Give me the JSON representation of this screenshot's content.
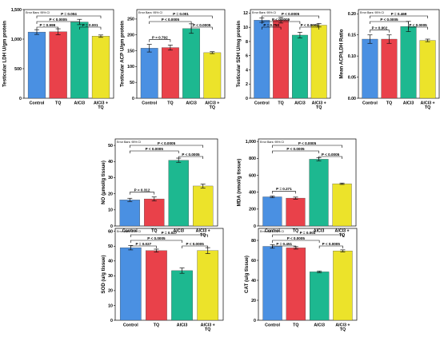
{
  "figure": {
    "colors": {
      "Control": "#4a90e2",
      "TQ": "#e9414a",
      "AlCl3": "#1db890",
      "AlCl3 + TQ": "#ece32a",
      "frame": "#000000",
      "bracket": "#000000"
    }
  },
  "chart_data": [
    {
      "type": "bar",
      "panel": "ldh",
      "ylabel": "Testicular LDH U/gm protein",
      "note": "Error Bars: 95% CI",
      "categories": [
        "Control",
        "TQ",
        "AlCl3",
        "AlCl3 + TQ"
      ],
      "category_labels": [
        "Control",
        "TQ",
        "AlCl3",
        "AlCl3 +\nTQ"
      ],
      "values": [
        1120,
        1125,
        1290,
        1050
      ],
      "errors": [
        40,
        50,
        45,
        20
      ],
      "ylim": [
        0,
        1500
      ],
      "yticks": [
        0,
        500,
        1000,
        1500
      ],
      "ytick_labels": [
        "0",
        "500",
        "1,000",
        "1,500"
      ],
      "brackets": [
        {
          "from": 0,
          "to": 3,
          "label": "P = 0.004"
        },
        {
          "from": 0,
          "to": 2,
          "label": "P < 0.0005"
        },
        {
          "from": 0,
          "to": 1,
          "label": "P = 0.999"
        },
        {
          "from": 2,
          "to": 3,
          "label": "P = 0.001"
        }
      ]
    },
    {
      "type": "bar",
      "panel": "acp",
      "ylabel": "Testicular ACP U/gm protein",
      "note": "Error Bars: 95% CI",
      "categories": [
        "Control",
        "TQ",
        "AlCl3",
        "AlCl3 + TQ"
      ],
      "category_labels": [
        "Control",
        "TQ",
        "AlCl3",
        "AlCl3 +\nTQ"
      ],
      "values": [
        158,
        160,
        220,
        144
      ],
      "errors": [
        12,
        8,
        15,
        3
      ],
      "ylim": [
        0,
        280
      ],
      "yticks": [
        0,
        50,
        100,
        150,
        200,
        250
      ],
      "ytick_labels": [
        "0",
        "50",
        "100",
        "150",
        "200",
        "250"
      ],
      "brackets": [
        {
          "from": 0,
          "to": 3,
          "label": "P = 0.001"
        },
        {
          "from": 0,
          "to": 2,
          "label": "P < 0.0005"
        },
        {
          "from": 0,
          "to": 1,
          "label": "P = 0.792"
        },
        {
          "from": 2,
          "to": 3,
          "label": "P < 0.0005"
        }
      ]
    },
    {
      "type": "bar",
      "panel": "sdh",
      "ylabel": "Testicular SDH U/mg protein",
      "note": "Error Bars: 95% CI",
      "categories": [
        "Control",
        "TQ",
        "AlCl3",
        "AlCl3 + TQ"
      ],
      "category_labels": [
        "Control",
        "TQ",
        "AlCl3",
        "AlCl3 +\nTQ"
      ],
      "values": [
        11.0,
        11.0,
        8.9,
        10.3
      ],
      "errors": [
        0.3,
        0.4,
        0.4,
        0.25
      ],
      "ylim": [
        0,
        12.5
      ],
      "yticks": [
        0,
        2,
        4,
        6,
        8,
        10,
        12
      ],
      "ytick_labels": [
        "0",
        "2",
        "4",
        "6",
        "8",
        "10",
        "12"
      ],
      "brackets": [
        {
          "from": 0,
          "to": 3,
          "label": "P < 0.0005"
        },
        {
          "from": 0,
          "to": 2,
          "label": "P < 0.0005"
        },
        {
          "from": 0,
          "to": 1,
          "label": "P = 0.750"
        },
        {
          "from": 2,
          "to": 3,
          "label": "P < 0.0005"
        }
      ]
    },
    {
      "type": "bar",
      "panel": "ratio",
      "ylabel": "Mean ACP/LDH Ratio",
      "note": "Error Bars: 95% CI",
      "categories": [
        "Control",
        "TQ",
        "AlCl3",
        "AlCl3 + TQ"
      ],
      "category_labels": [
        "Control",
        "TQ",
        "AlCl3",
        "AlCl3 +\nTQ"
      ],
      "values": [
        0.14,
        0.14,
        0.17,
        0.137
      ],
      "errors": [
        0.01,
        0.01,
        0.012,
        0.003
      ],
      "ylim": [
        0,
        0.21
      ],
      "yticks": [
        0,
        0.05,
        0.1,
        0.15,
        0.2
      ],
      "ytick_labels": [
        "0.00",
        "0.05",
        "0.10",
        "0.15",
        "0.20"
      ],
      "brackets": [
        {
          "from": 0,
          "to": 3,
          "label": "P = 0.469"
        },
        {
          "from": 0,
          "to": 2,
          "label": "P < 0.0005"
        },
        {
          "from": 0,
          "to": 1,
          "label": "P = 0.902"
        },
        {
          "from": 2,
          "to": 3,
          "label": "P < 0.0005"
        }
      ]
    },
    {
      "type": "bar",
      "panel": "no",
      "ylabel": "NO (µmol/g tissue)",
      "note": "Error Bars: 95% CI",
      "categories": [
        "Control",
        "TQ",
        "AlCl3",
        "AlCl3 + TQ"
      ],
      "category_labels": [
        "Control",
        "TQ",
        "AlCl3",
        "AlCl3 +\nTQ"
      ],
      "values": [
        16.2,
        16.8,
        40.8,
        24.8
      ],
      "errors": [
        1.0,
        1.2,
        1.3,
        1.2
      ],
      "ylim": [
        0,
        54
      ],
      "yticks": [
        0,
        10,
        20,
        30,
        40,
        50
      ],
      "ytick_labels": [
        "0",
        "10",
        "20",
        "30",
        "40",
        "50"
      ],
      "brackets": [
        {
          "from": 0,
          "to": 3,
          "label": "P < 0.0005"
        },
        {
          "from": 0,
          "to": 2,
          "label": "P < 0.0005"
        },
        {
          "from": 0,
          "to": 1,
          "label": "P = 0.312"
        },
        {
          "from": 2,
          "to": 3,
          "label": "P < 0.0005"
        }
      ]
    },
    {
      "type": "bar",
      "panel": "mda",
      "ylabel": "MDA (nmol/g tissue)",
      "note": "Error Bars: 95% CI",
      "categories": [
        "Control",
        "TQ",
        "AlCl3",
        "AlCl3 + TQ"
      ],
      "category_labels": [
        "Control",
        "TQ",
        "AlCl3",
        "AlCl3 +\nTQ"
      ],
      "values": [
        345,
        330,
        790,
        500
      ],
      "errors": [
        10,
        12,
        18,
        8
      ],
      "ylim": [
        0,
        1030
      ],
      "yticks": [
        0,
        200,
        400,
        600,
        800,
        1000
      ],
      "ytick_labels": [
        "0",
        "200",
        "400",
        "600",
        "800",
        "1,000"
      ],
      "brackets": [
        {
          "from": 0,
          "to": 3,
          "label": "P < 0.0005"
        },
        {
          "from": 0,
          "to": 2,
          "label": "P < 0.0005"
        },
        {
          "from": 0,
          "to": 1,
          "label": "P = 0.271"
        },
        {
          "from": 2,
          "to": 3,
          "label": "P < 0.0005"
        }
      ]
    },
    {
      "type": "bar",
      "panel": "sod",
      "ylabel": "SOD (u/g tissue)",
      "note": "Error Bars: 95% CI",
      "categories": [
        "Control",
        "TQ",
        "AlCl3",
        "AlCl3 + TQ"
      ],
      "category_labels": [
        "Control",
        "TQ",
        "AlCl3",
        "AlCl3 +\nTQ"
      ],
      "values": [
        49,
        47,
        33.5,
        47
      ],
      "errors": [
        1.5,
        1.0,
        1.8,
        2.0
      ],
      "ylim": [
        0,
        62
      ],
      "yticks": [
        0,
        10,
        20,
        30,
        40,
        50,
        60
      ],
      "ytick_labels": [
        "0",
        "10",
        "20",
        "30",
        "40",
        "50",
        "60"
      ],
      "brackets": [
        {
          "from": 0,
          "to": 3,
          "label": "P = 0.027"
        },
        {
          "from": 0,
          "to": 2,
          "label": "P < 0.0005"
        },
        {
          "from": 0,
          "to": 1,
          "label": "P = 0.027"
        },
        {
          "from": 2,
          "to": 3,
          "label": "P < 0.0005"
        }
      ]
    },
    {
      "type": "bar",
      "panel": "cat",
      "ylabel": "CAT (u/g tissue)",
      "note": "Error Bars: 95% CI",
      "categories": [
        "Control",
        "TQ",
        "AlCl3",
        "AlCl3 + TQ"
      ],
      "category_labels": [
        "Control",
        "TQ",
        "AlCl3",
        "AlCl3 +\nTQ"
      ],
      "values": [
        74,
        72.5,
        48.5,
        69.5
      ],
      "errors": [
        1.8,
        1.2,
        0.8,
        1.0
      ],
      "ylim": [
        0,
        92
      ],
      "yticks": [
        0,
        20,
        40,
        60,
        80
      ],
      "ytick_labels": [
        "0",
        "20",
        "40",
        "60",
        "80"
      ],
      "brackets": [
        {
          "from": 0,
          "to": 3,
          "label": "P = 0.003"
        },
        {
          "from": 0,
          "to": 2,
          "label": "P < 0.0005"
        },
        {
          "from": 0,
          "to": 1,
          "label": "P = 0.451"
        },
        {
          "from": 2,
          "to": 3,
          "label": "P < 0.0005"
        }
      ]
    }
  ]
}
